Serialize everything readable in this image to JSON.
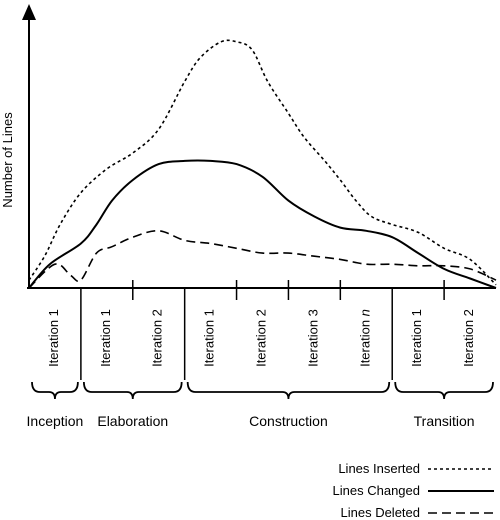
{
  "chart_data": {
    "type": "line",
    "ylabel": "Number of Lines",
    "iterations": [
      {
        "label": "Iteration 1",
        "italic": ""
      },
      {
        "label": "Iteration 1",
        "italic": ""
      },
      {
        "label": "Iteration 2",
        "italic": ""
      },
      {
        "label": "Iteration 1",
        "italic": ""
      },
      {
        "label": "Iteration 2",
        "italic": ""
      },
      {
        "label": "Iteration 3",
        "italic": ""
      },
      {
        "label": "Iteration ",
        "italic": "n"
      },
      {
        "label": "Iteration 1",
        "italic": ""
      },
      {
        "label": "Iteration 2",
        "italic": ""
      }
    ],
    "phases": [
      {
        "label": "Inception",
        "from": 0,
        "to": 1
      },
      {
        "label": "Elaboration",
        "from": 1,
        "to": 3
      },
      {
        "label": "Construction",
        "from": 3,
        "to": 7
      },
      {
        "label": "Transition",
        "from": 7,
        "to": 9
      }
    ],
    "series": [
      {
        "name": "Lines Inserted",
        "style": "dotted",
        "x": [
          0,
          0.3,
          0.6,
          1.0,
          1.5,
          2.0,
          2.5,
          3.0,
          3.3,
          3.7,
          4.0,
          4.3,
          4.6,
          5.0,
          5.3,
          5.7,
          6.0,
          6.3,
          6.6,
          7.0,
          7.5,
          8.0,
          8.5,
          9.0
        ],
        "y": [
          5,
          20,
          40,
          60,
          75,
          85,
          100,
          130,
          145,
          155,
          155,
          150,
          130,
          110,
          95,
          80,
          68,
          55,
          45,
          40,
          35,
          25,
          18,
          2
        ]
      },
      {
        "name": "Lines Changed",
        "style": "solid",
        "x": [
          0,
          0.4,
          1.0,
          1.3,
          1.6,
          2.0,
          2.5,
          3.0,
          3.5,
          4.0,
          4.5,
          5.0,
          5.5,
          6.0,
          6.5,
          7.0,
          7.5,
          8.0,
          8.5,
          9.0
        ],
        "y": [
          0,
          15,
          28,
          40,
          55,
          68,
          78,
          80,
          80,
          78,
          70,
          55,
          45,
          38,
          36,
          32,
          22,
          12,
          6,
          0
        ]
      },
      {
        "name": "Lines Deleted",
        "style": "dashed",
        "x": [
          0,
          0.5,
          0.8,
          1.0,
          1.3,
          1.6,
          2.0,
          2.5,
          3.0,
          3.5,
          4.0,
          4.5,
          5.0,
          5.5,
          6.0,
          6.5,
          7.0,
          7.5,
          8.0,
          8.5,
          9.0
        ],
        "y": [
          0,
          15,
          8,
          5,
          22,
          26,
          32,
          36,
          30,
          28,
          25,
          22,
          22,
          20,
          18,
          15,
          15,
          14,
          14,
          12,
          5
        ]
      }
    ],
    "legend_position": "bottom-right"
  }
}
